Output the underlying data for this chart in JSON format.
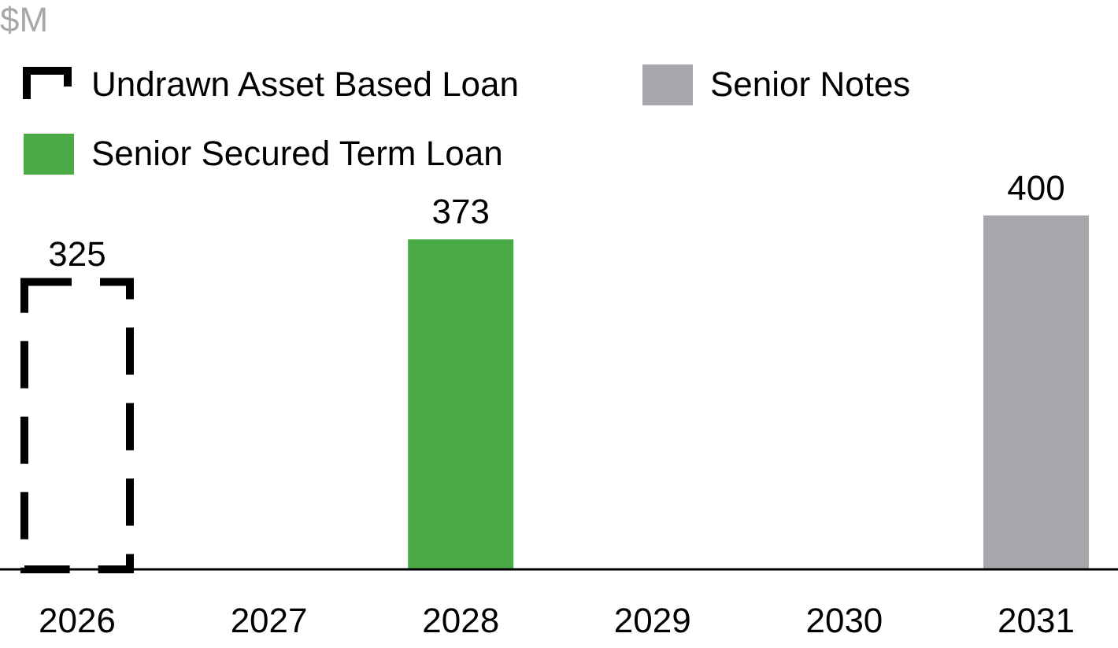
{
  "chart_data": {
    "type": "bar",
    "annotations": [
      "$M"
    ],
    "categories": [
      "2026",
      "2027",
      "2028",
      "2029",
      "2030",
      "2031"
    ],
    "data_labels": true,
    "legend": "top left",
    "series": [
      {
        "name": "Undrawn Asset Based Loan",
        "color": "#000000",
        "line_style": "dashed",
        "values": [
          325,
          null,
          null,
          null,
          null,
          null
        ]
      },
      {
        "name": "Senior Secured Term Loan",
        "color": "#4aab46",
        "values": [
          null,
          null,
          373,
          null,
          null,
          null
        ]
      },
      {
        "name": "Senior Notes",
        "color": "#a6a8ab",
        "values": [
          null,
          null,
          null,
          null,
          null,
          400
        ]
      }
    ]
  }
}
